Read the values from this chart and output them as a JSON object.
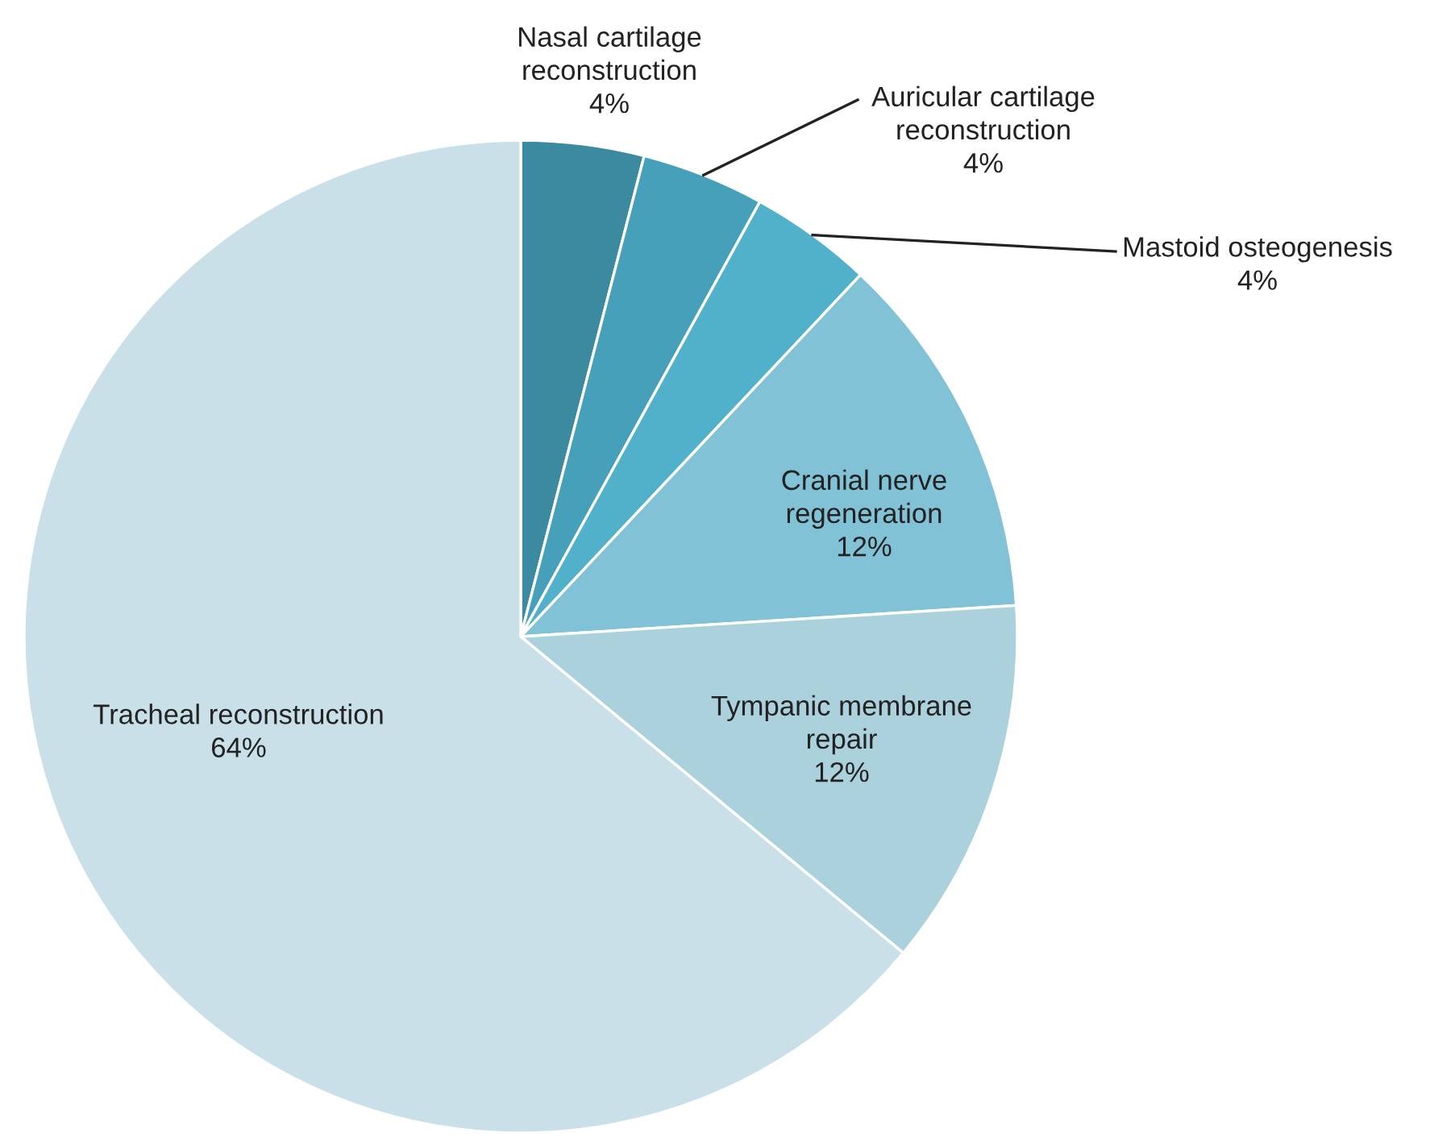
{
  "chart_data": {
    "type": "pie",
    "categories": [
      "Nasal cartilage reconstruction",
      "Auricular cartilage reconstruction",
      "Mastoid osteogenesis",
      "Cranial nerve regeneration",
      "Tympanic membrane repair",
      "Tracheal reconstruction"
    ],
    "values": [
      4,
      4,
      4,
      12,
      12,
      64
    ],
    "value_labels": [
      "4%",
      "4%",
      "4%",
      "12%",
      "12%",
      "64%"
    ],
    "colors": [
      "#3b8a9f",
      "#46a0b9",
      "#52b1ca",
      "#82c2d6",
      "#abd1dd",
      "#c9e0e8"
    ],
    "legend": false
  }
}
